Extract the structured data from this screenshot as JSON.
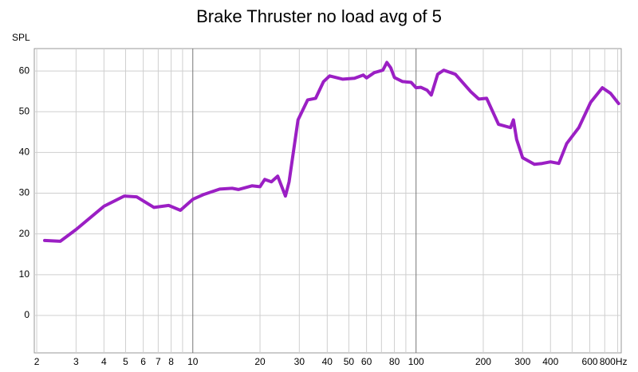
{
  "chart_data": {
    "type": "line",
    "title": "Brake Thruster no load avg of 5",
    "y_label": "SPL",
    "log_x": true,
    "grid": true,
    "xlim": [
      1.95,
      830
    ],
    "ylim": [
      -9.2,
      65.5
    ],
    "xticks": [
      2,
      3,
      4,
      5,
      6,
      7,
      8,
      10,
      20,
      30,
      40,
      50,
      60,
      80,
      100,
      200,
      300,
      400,
      600,
      {
        "value": 800,
        "label": "800Hz"
      }
    ],
    "xminorticks": [
      9,
      70,
      90,
      500,
      700
    ],
    "yticks": [
      0,
      10,
      20,
      30,
      40,
      50,
      60
    ],
    "x": [
      2.17,
      2.55,
      3.0,
      4.0,
      4.93,
      5.6,
      6.7,
      7.8,
      8.8,
      10,
      11.2,
      13.2,
      15,
      16,
      18.4,
      20,
      21,
      22.5,
      24,
      26,
      27,
      29.6,
      32.7,
      35.5,
      38.5,
      41,
      47,
      53,
      58,
      60,
      65,
      71,
      74,
      77,
      80,
      87,
      95,
      100,
      105,
      112,
      117,
      125,
      133,
      150,
      176,
      191,
      207,
      234,
      265,
      273,
      282,
      300,
      339,
      367,
      400,
      436,
      473,
      536,
      605,
      683,
      744,
      808
    ],
    "series": [
      {
        "name": "Brake Thruster no load avg of 5",
        "color": "#9b1fc4",
        "values": [
          18.4,
          18.2,
          21.1,
          26.8,
          29.3,
          29.1,
          26.5,
          27.0,
          25.8,
          28.5,
          29.7,
          31.0,
          31.2,
          30.9,
          31.8,
          31.6,
          33.4,
          32.8,
          34.2,
          29.3,
          32.8,
          48.0,
          52.9,
          53.3,
          57.4,
          58.8,
          58.0,
          58.2,
          59.0,
          58.3,
          59.6,
          60.2,
          62.1,
          60.8,
          58.4,
          57.4,
          57.2,
          55.9,
          56.0,
          55.3,
          54.1,
          59.2,
          60.2,
          59.2,
          54.9,
          53.1,
          53.3,
          46.9,
          46.1,
          48.0,
          43.2,
          38.7,
          37.1,
          37.3,
          37.7,
          37.3,
          42.2,
          46.1,
          52.3,
          55.9,
          54.5,
          52.0
        ]
      }
    ]
  }
}
